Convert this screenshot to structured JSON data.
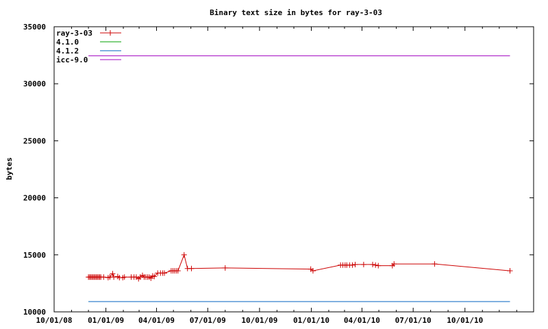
{
  "chart_data": {
    "type": "line",
    "title": "Binary text size in bytes for ray-3-03",
    "xlabel": "",
    "ylabel": "bytes",
    "xlim": [
      "2008-10-01",
      "2011-01-31"
    ],
    "ylim": [
      10000,
      35000
    ],
    "x_ticks": [
      "10/01/08",
      "01/01/09",
      "04/01/09",
      "07/01/09",
      "10/01/09",
      "01/01/10",
      "04/01/10",
      "07/01/10",
      "10/01/10"
    ],
    "x_tick_dates": [
      "2008-10-01",
      "2009-01-01",
      "2009-04-01",
      "2009-07-01",
      "2009-10-01",
      "2010-01-01",
      "2010-04-01",
      "2010-07-01",
      "2010-10-01"
    ],
    "y_ticks": [
      10000,
      15000,
      20000,
      25000,
      30000,
      35000
    ],
    "legend_position": "top-left",
    "grid": false,
    "series": [
      {
        "name": "ray-3-03",
        "color": "#cc0000",
        "marker": "plus",
        "points": [
          [
            "2008-12-01",
            13050
          ],
          [
            "2008-12-03",
            13050
          ],
          [
            "2008-12-05",
            13050
          ],
          [
            "2008-12-07",
            13050
          ],
          [
            "2008-12-09",
            13050
          ],
          [
            "2008-12-11",
            13050
          ],
          [
            "2008-12-13",
            13050
          ],
          [
            "2008-12-15",
            13050
          ],
          [
            "2008-12-17",
            13050
          ],
          [
            "2008-12-19",
            13050
          ],
          [
            "2008-12-21",
            13050
          ],
          [
            "2008-12-23",
            13050
          ],
          [
            "2008-12-28",
            13050
          ],
          [
            "2009-01-05",
            13000
          ],
          [
            "2009-01-08",
            13050
          ],
          [
            "2009-01-13",
            13350
          ],
          [
            "2009-01-15",
            13050
          ],
          [
            "2009-01-22",
            13100
          ],
          [
            "2009-01-25",
            13000
          ],
          [
            "2009-01-31",
            13000
          ],
          [
            "2009-02-03",
            13050
          ],
          [
            "2009-02-15",
            13050
          ],
          [
            "2009-02-20",
            13050
          ],
          [
            "2009-02-24",
            13050
          ],
          [
            "2009-02-28",
            12900
          ],
          [
            "2009-03-03",
            13050
          ],
          [
            "2009-03-07",
            13200
          ],
          [
            "2009-03-10",
            13050
          ],
          [
            "2009-03-13",
            13050
          ],
          [
            "2009-03-16",
            13050
          ],
          [
            "2009-03-19",
            13050
          ],
          [
            "2009-03-22",
            12950
          ],
          [
            "2009-03-25",
            13150
          ],
          [
            "2009-03-28",
            13100
          ],
          [
            "2009-04-03",
            13400
          ],
          [
            "2009-04-08",
            13400
          ],
          [
            "2009-04-12",
            13400
          ],
          [
            "2009-04-15",
            13400
          ],
          [
            "2009-04-27",
            13600
          ],
          [
            "2009-04-30",
            13600
          ],
          [
            "2009-05-03",
            13600
          ],
          [
            "2009-05-06",
            13600
          ],
          [
            "2009-05-09",
            13600
          ],
          [
            "2009-05-20",
            15000
          ],
          [
            "2009-05-26",
            13800
          ],
          [
            "2009-06-02",
            13800
          ],
          [
            "2009-08-01",
            13850
          ],
          [
            "2009-12-31",
            13750
          ],
          [
            "2010-01-04",
            13600
          ],
          [
            "2010-02-22",
            14100
          ],
          [
            "2010-02-26",
            14100
          ],
          [
            "2010-03-02",
            14100
          ],
          [
            "2010-03-05",
            14100
          ],
          [
            "2010-03-10",
            14100
          ],
          [
            "2010-03-15",
            14100
          ],
          [
            "2010-03-20",
            14150
          ],
          [
            "2010-04-04",
            14150
          ],
          [
            "2010-04-20",
            14150
          ],
          [
            "2010-04-25",
            14100
          ],
          [
            "2010-04-30",
            14050
          ],
          [
            "2010-05-25",
            14050
          ],
          [
            "2010-05-28",
            14200
          ],
          [
            "2010-08-08",
            14200
          ],
          [
            "2010-12-20",
            13600
          ]
        ]
      },
      {
        "name": "4.1.0",
        "color": "#00a000",
        "marker": "none",
        "points": [
          [
            "2008-12-01",
            10900
          ],
          [
            "2010-12-20",
            10900
          ]
        ]
      },
      {
        "name": "4.1.2",
        "color": "#0060c0",
        "marker": "none",
        "points": [
          [
            "2008-12-01",
            10900
          ],
          [
            "2010-12-20",
            10900
          ]
        ]
      },
      {
        "name": "icc-9.0",
        "color": "#a000c0",
        "marker": "none",
        "points": [
          [
            "2008-12-01",
            32450
          ],
          [
            "2010-12-20",
            32450
          ]
        ]
      }
    ]
  }
}
